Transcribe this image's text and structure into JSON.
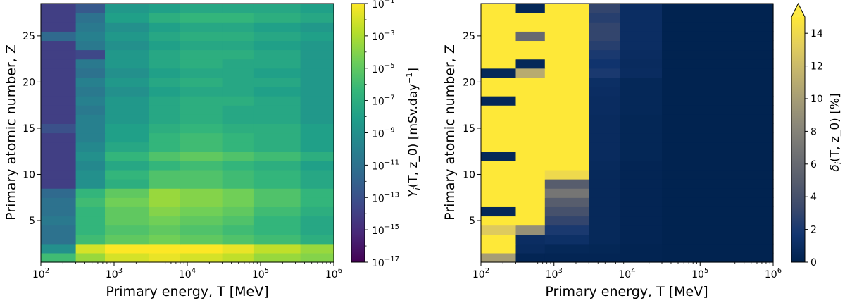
{
  "chart_data": [
    {
      "type": "heatmap",
      "panel": "left",
      "xlabel": "Primary energy, T [MeV]",
      "ylabel": "Primary atomic number, Z",
      "x_scale": "log",
      "xlim": [
        100,
        1000000
      ],
      "ylim": [
        0.5,
        28.5
      ],
      "x_ticks": [
        100,
        1000,
        10000,
        100000,
        1000000
      ],
      "x_tick_labels": [
        {
          "base": "10",
          "exp": "2"
        },
        {
          "base": "10",
          "exp": "3"
        },
        {
          "base": "10",
          "exp": "4"
        },
        {
          "base": "10",
          "exp": "5"
        },
        {
          "base": "10",
          "exp": "6"
        }
      ],
      "y_ticks": [
        5,
        10,
        15,
        20,
        25
      ],
      "y_tick_labels": [
        "5",
        "10",
        "15",
        "20",
        "25"
      ],
      "x_edges": [
        100,
        300,
        750,
        3000,
        8000,
        30000,
        80000,
        350000,
        1000000
      ],
      "z_values": [
        1,
        2,
        3,
        4,
        5,
        6,
        7,
        8,
        9,
        10,
        11,
        12,
        13,
        14,
        15,
        16,
        17,
        18,
        19,
        20,
        21,
        22,
        23,
        24,
        25,
        26,
        27,
        28
      ],
      "colorbar": {
        "label": "Y_i(T, z_0) [mSv.day^-1]",
        "scale": "log",
        "colormap": "viridis",
        "range": [
          1e-17,
          0.1
        ],
        "ticks": [
          -17,
          -15,
          -13,
          -11,
          -9,
          -7,
          -5,
          -3,
          -1
        ],
        "tick_labels": [
          {
            "base": "10",
            "exp": "−17"
          },
          {
            "base": "10",
            "exp": "−15"
          },
          {
            "base": "10",
            "exp": "−13"
          },
          {
            "base": "10",
            "exp": "−11"
          },
          {
            "base": "10",
            "exp": "−9"
          },
          {
            "base": "10",
            "exp": "−7"
          },
          {
            "base": "10",
            "exp": "−5"
          },
          {
            "base": "10",
            "exp": "−3"
          },
          {
            "base": "10",
            "exp": "−1"
          }
        ]
      },
      "values_log10": [
        [
          -6.0,
          -3.5,
          -2.0,
          -1.5,
          -2.0,
          -2.5,
          -3.5,
          -4.0
        ],
        [
          -9.0,
          -2.0,
          -1.0,
          -0.8,
          -1.0,
          -1.5,
          -2.5,
          -3.5
        ],
        [
          -11.0,
          -6.0,
          -5.0,
          -4.5,
          -5.0,
          -5.5,
          -6.0,
          -7.0
        ],
        [
          -11.0,
          -6.5,
          -5.5,
          -5.0,
          -5.5,
          -6.0,
          -6.5,
          -7.5
        ],
        [
          -10.5,
          -6.5,
          -5.0,
          -4.5,
          -5.0,
          -5.5,
          -6.5,
          -7.5
        ],
        [
          -11.0,
          -6.5,
          -5.0,
          -4.0,
          -4.5,
          -5.0,
          -6.0,
          -7.0
        ],
        [
          -11.0,
          -6.0,
          -4.5,
          -3.5,
          -4.0,
          -4.5,
          -5.5,
          -6.5
        ],
        [
          -11.5,
          -6.5,
          -5.0,
          -3.5,
          -4.0,
          -4.5,
          -5.5,
          -6.5
        ],
        [
          -14.0,
          -9.0,
          -7.0,
          -5.5,
          -5.5,
          -6.0,
          -6.5,
          -7.5
        ],
        [
          -14.0,
          -9.0,
          -6.5,
          -5.5,
          -5.5,
          -6.0,
          -6.5,
          -7.5
        ],
        [
          -14.0,
          -9.5,
          -7.5,
          -6.5,
          -6.0,
          -6.5,
          -7.0,
          -8.0
        ],
        [
          -14.0,
          -9.0,
          -6.5,
          -5.5,
          -5.0,
          -5.5,
          -6.0,
          -7.0
        ],
        [
          -14.0,
          -9.5,
          -7.5,
          -6.5,
          -6.0,
          -6.5,
          -7.0,
          -8.0
        ],
        [
          -14.0,
          -10.0,
          -8.0,
          -6.5,
          -6.0,
          -6.5,
          -7.0,
          -8.0
        ],
        [
          -13.0,
          -10.0,
          -8.0,
          -7.0,
          -6.5,
          -7.0,
          -7.0,
          -8.0
        ],
        [
          -14.0,
          -10.0,
          -8.5,
          -7.5,
          -7.0,
          -7.5,
          -7.5,
          -8.5
        ],
        [
          -14.0,
          -10.5,
          -8.5,
          -7.5,
          -7.0,
          -7.5,
          -7.5,
          -8.5
        ],
        [
          -14.0,
          -10.0,
          -8.5,
          -7.5,
          -7.0,
          -7.0,
          -7.5,
          -8.5
        ],
        [
          -14.0,
          -10.5,
          -9.0,
          -8.0,
          -7.5,
          -7.5,
          -8.0,
          -8.5
        ],
        [
          -14.0,
          -10.0,
          -8.5,
          -7.5,
          -7.0,
          -7.5,
          -7.5,
          -8.5
        ],
        [
          -14.0,
          -11.0,
          -9.0,
          -8.0,
          -7.5,
          -7.5,
          -8.0,
          -8.5
        ],
        [
          -14.0,
          -10.5,
          -8.5,
          -7.5,
          -7.0,
          -7.5,
          -7.5,
          -8.5
        ],
        [
          -14.0,
          -13.5,
          -8.5,
          -7.5,
          -7.0,
          -7.0,
          -7.5,
          -8.5
        ],
        [
          -14.0,
          -10.5,
          -9.0,
          -8.0,
          -7.5,
          -7.5,
          -8.0,
          -8.5
        ],
        [
          -11.5,
          -10.0,
          -8.5,
          -7.5,
          -7.0,
          -7.0,
          -7.5,
          -8.0
        ],
        [
          -14.0,
          -10.5,
          -9.0,
          -8.0,
          -7.5,
          -7.5,
          -8.0,
          -8.5
        ],
        [
          -14.0,
          -11.0,
          -8.0,
          -7.0,
          -6.5,
          -6.5,
          -7.0,
          -7.5
        ],
        [
          -14.0,
          -12.5,
          -8.5,
          -8.0,
          -7.5,
          -7.5,
          -7.5,
          -8.0
        ]
      ]
    },
    {
      "type": "heatmap",
      "panel": "right",
      "xlabel": "Primary energy, T [MeV]",
      "ylabel": "Primary atomic number, Z",
      "x_scale": "log",
      "xlim": [
        100,
        1000000
      ],
      "ylim": [
        0.5,
        28.5
      ],
      "x_ticks": [
        100,
        1000,
        10000,
        100000,
        1000000
      ],
      "x_tick_labels": [
        {
          "base": "10",
          "exp": "2"
        },
        {
          "base": "10",
          "exp": "3"
        },
        {
          "base": "10",
          "exp": "4"
        },
        {
          "base": "10",
          "exp": "5"
        },
        {
          "base": "10",
          "exp": "6"
        }
      ],
      "y_ticks": [
        5,
        10,
        15,
        20,
        25
      ],
      "y_tick_labels": [
        "5",
        "10",
        "15",
        "20",
        "25"
      ],
      "x_edges": [
        100,
        300,
        750,
        3000,
        8000,
        30000,
        1000000
      ],
      "z_values": [
        1,
        2,
        3,
        4,
        5,
        6,
        7,
        8,
        9,
        10,
        11,
        12,
        13,
        14,
        15,
        16,
        17,
        18,
        19,
        20,
        21,
        22,
        23,
        24,
        25,
        26,
        27,
        28
      ],
      "colorbar": {
        "label": "δ_i(T, z_0) [%]",
        "scale": "linear",
        "colormap": "cividis",
        "range": [
          0,
          15
        ],
        "extend": "max",
        "ticks": [
          0,
          2,
          4,
          6,
          8,
          10,
          12,
          14
        ],
        "tick_labels": [
          "0",
          "2",
          "4",
          "6",
          "8",
          "10",
          "12",
          "14"
        ]
      },
      "values": [
        [
          10.0,
          0.3,
          0.3,
          0.3,
          0.2,
          0.1
        ],
        [
          15.0,
          0.8,
          0.5,
          0.4,
          0.2,
          0.1
        ],
        [
          15.0,
          1.0,
          1.2,
          0.6,
          0.3,
          0.1
        ],
        [
          13.0,
          9.0,
          2.0,
          0.6,
          0.3,
          0.1
        ],
        [
          15.0,
          15.0,
          3.0,
          0.6,
          0.3,
          0.1
        ],
        [
          0.5,
          15.0,
          4.0,
          0.6,
          0.3,
          0.1
        ],
        [
          15.0,
          15.0,
          5.0,
          0.6,
          0.3,
          0.1
        ],
        [
          15.0,
          15.0,
          7.0,
          0.6,
          0.3,
          0.1
        ],
        [
          15.0,
          15.0,
          5.0,
          0.6,
          0.3,
          0.1
        ],
        [
          15.0,
          15.0,
          14.0,
          0.6,
          0.3,
          0.1
        ],
        [
          15.0,
          15.0,
          15.0,
          0.7,
          0.3,
          0.1
        ],
        [
          0.5,
          15.0,
          15.0,
          0.8,
          0.4,
          0.1
        ],
        [
          15.0,
          15.0,
          15.0,
          0.8,
          0.4,
          0.1
        ],
        [
          15.0,
          15.0,
          15.0,
          0.8,
          0.4,
          0.1
        ],
        [
          15.0,
          15.0,
          15.0,
          0.8,
          0.4,
          0.1
        ],
        [
          15.0,
          15.0,
          15.0,
          0.8,
          0.4,
          0.1
        ],
        [
          15.0,
          15.0,
          15.0,
          0.9,
          0.5,
          0.1
        ],
        [
          0.5,
          15.0,
          15.0,
          0.9,
          0.5,
          0.1
        ],
        [
          15.0,
          15.0,
          15.0,
          1.0,
          0.5,
          0.1
        ],
        [
          15.0,
          15.0,
          15.0,
          1.1,
          0.5,
          0.1
        ],
        [
          0.5,
          11.0,
          15.0,
          2.0,
          0.9,
          0.1
        ],
        [
          15.0,
          0.5,
          15.0,
          1.5,
          0.8,
          0.1
        ],
        [
          15.0,
          15.0,
          15.0,
          2.0,
          0.9,
          0.1
        ],
        [
          15.0,
          15.0,
          15.0,
          2.5,
          1.0,
          0.1
        ],
        [
          15.0,
          6.0,
          15.0,
          3.0,
          1.0,
          0.1
        ],
        [
          15.0,
          15.0,
          15.0,
          3.0,
          1.0,
          0.1
        ],
        [
          15.0,
          15.0,
          15.0,
          2.5,
          1.0,
          0.1
        ],
        [
          15.0,
          0.5,
          15.0,
          3.0,
          1.0,
          0.1
        ]
      ]
    }
  ]
}
